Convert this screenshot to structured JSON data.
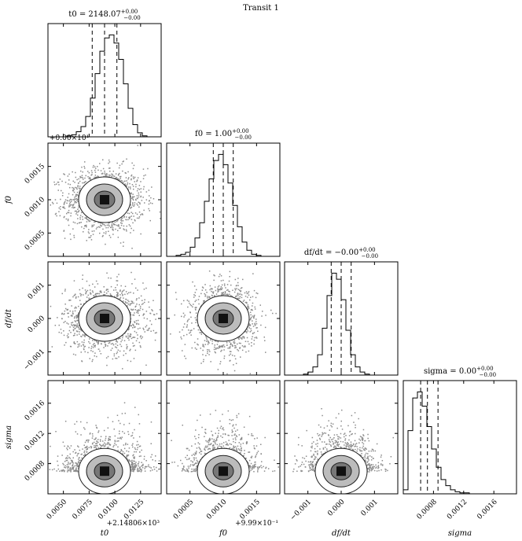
{
  "figure": {
    "suptitle": "Transit 1"
  },
  "chart_data": {
    "type": "corner",
    "parameters": [
      {
        "name": "t0",
        "label": "t0",
        "range": [
          2148.0635,
          2148.0745
        ],
        "title": "t0 = 2148.07^{+0.00}_{-0.00}",
        "title_main": "t0 = 2148.07",
        "title_sup": "+0.00",
        "title_sub": "−0.00",
        "ticks": [
          0.005,
          0.0075,
          0.01,
          0.0125
        ],
        "tick_labels": [
          "0.0050",
          "0.0075",
          "0.0100",
          "0.0125"
        ],
        "offset_label": "+2.14806×10³",
        "mean": 2148.069,
        "std": 0.0012,
        "quantiles": [
          2148.0678,
          2148.069,
          2148.0702
        ]
      },
      {
        "name": "f0",
        "label": "f0",
        "range": [
          0.99915,
          1.00085
        ],
        "title": "f0 = 1.00^{+0.00}_{-0.00}",
        "title_main": "f0 = 1.00",
        "title_sup": "+0.00",
        "title_sub": "−0.00",
        "ticks": [
          0.0005,
          0.001,
          0.0015
        ],
        "tick_labels": [
          "0.0005",
          "0.0010",
          "0.0015"
        ],
        "offset_label": "+9.99×10⁻¹",
        "mean": 1.0,
        "std": 0.00015,
        "quantiles": [
          0.99985,
          1.0,
          1.00015
        ]
      },
      {
        "name": "df/dt",
        "label": "df/dt",
        "range": [
          -0.0017,
          0.0017
        ],
        "title": "df/dt = −0.00^{+0.00}_{-0.00}",
        "title_main": "df/dt = −0.00",
        "title_sup": "+0.00",
        "title_sub": "−0.00",
        "ticks": [
          -0.001,
          0.0,
          0.001
        ],
        "tick_labels": [
          "−0.001",
          "0.000",
          "0.001"
        ],
        "offset_label": "",
        "mean": 0.0,
        "std": 0.0003,
        "quantiles": [
          -0.0003,
          0.0,
          0.0003
        ]
      },
      {
        "name": "sigma",
        "label": "sigma",
        "range": [
          0.0004,
          0.0019
        ],
        "title": "sigma = 0.00^{+0.00}_{-0.00}",
        "title_main": "sigma = 0.00",
        "title_sup": "+0.00",
        "title_sub": "−0.00",
        "ticks": [
          0.0008,
          0.0012,
          0.0016
        ],
        "tick_labels": [
          "0.0008",
          "0.0012",
          "0.0016"
        ],
        "offset_label": "",
        "mean": 0.0007,
        "std": 0.00012,
        "quantiles": [
          0.00063,
          0.00072,
          0.00086
        ]
      }
    ],
    "y_ticks": {
      "f0": {
        "ticks": [
          0.0005,
          0.001,
          0.0015
        ],
        "tick_labels": [
          "0.0005",
          "0.0010",
          "0.0015"
        ],
        "offset_label": "+9.99×10⁻¹"
      },
      "df/dt": {
        "ticks": [
          -0.001,
          0.0,
          0.001
        ],
        "tick_labels": [
          "−0.001",
          "0.000",
          "0.001"
        ]
      },
      "sigma": {
        "ticks": [
          0.0008,
          0.0012,
          0.0016
        ],
        "tick_labels": [
          "0.0008",
          "0.0012",
          "0.0016"
        ]
      }
    },
    "hist_top_offset_label": "+0.00×10¹",
    "histograms": {
      "t0": [
        0,
        0,
        0,
        0,
        1,
        2,
        5,
        10,
        20,
        38,
        62,
        84,
        97,
        100,
        92,
        76,
        52,
        28,
        12,
        4,
        1,
        0,
        0,
        0
      ],
      "f0": [
        0,
        0,
        1,
        2,
        4,
        9,
        18,
        33,
        54,
        76,
        94,
        100,
        90,
        72,
        50,
        29,
        14,
        6,
        2,
        1,
        0,
        0,
        0,
        0
      ],
      "df/dt": [
        0,
        0,
        0,
        0,
        1,
        3,
        8,
        20,
        46,
        78,
        100,
        94,
        74,
        44,
        20,
        8,
        3,
        1,
        0,
        0,
        0,
        0,
        0,
        0
      ],
      "sigma": [
        4,
        62,
        94,
        100,
        86,
        66,
        44,
        26,
        14,
        8,
        4,
        2,
        1,
        1,
        0,
        0,
        0,
        0,
        0,
        0,
        0,
        0,
        0,
        0
      ]
    }
  }
}
